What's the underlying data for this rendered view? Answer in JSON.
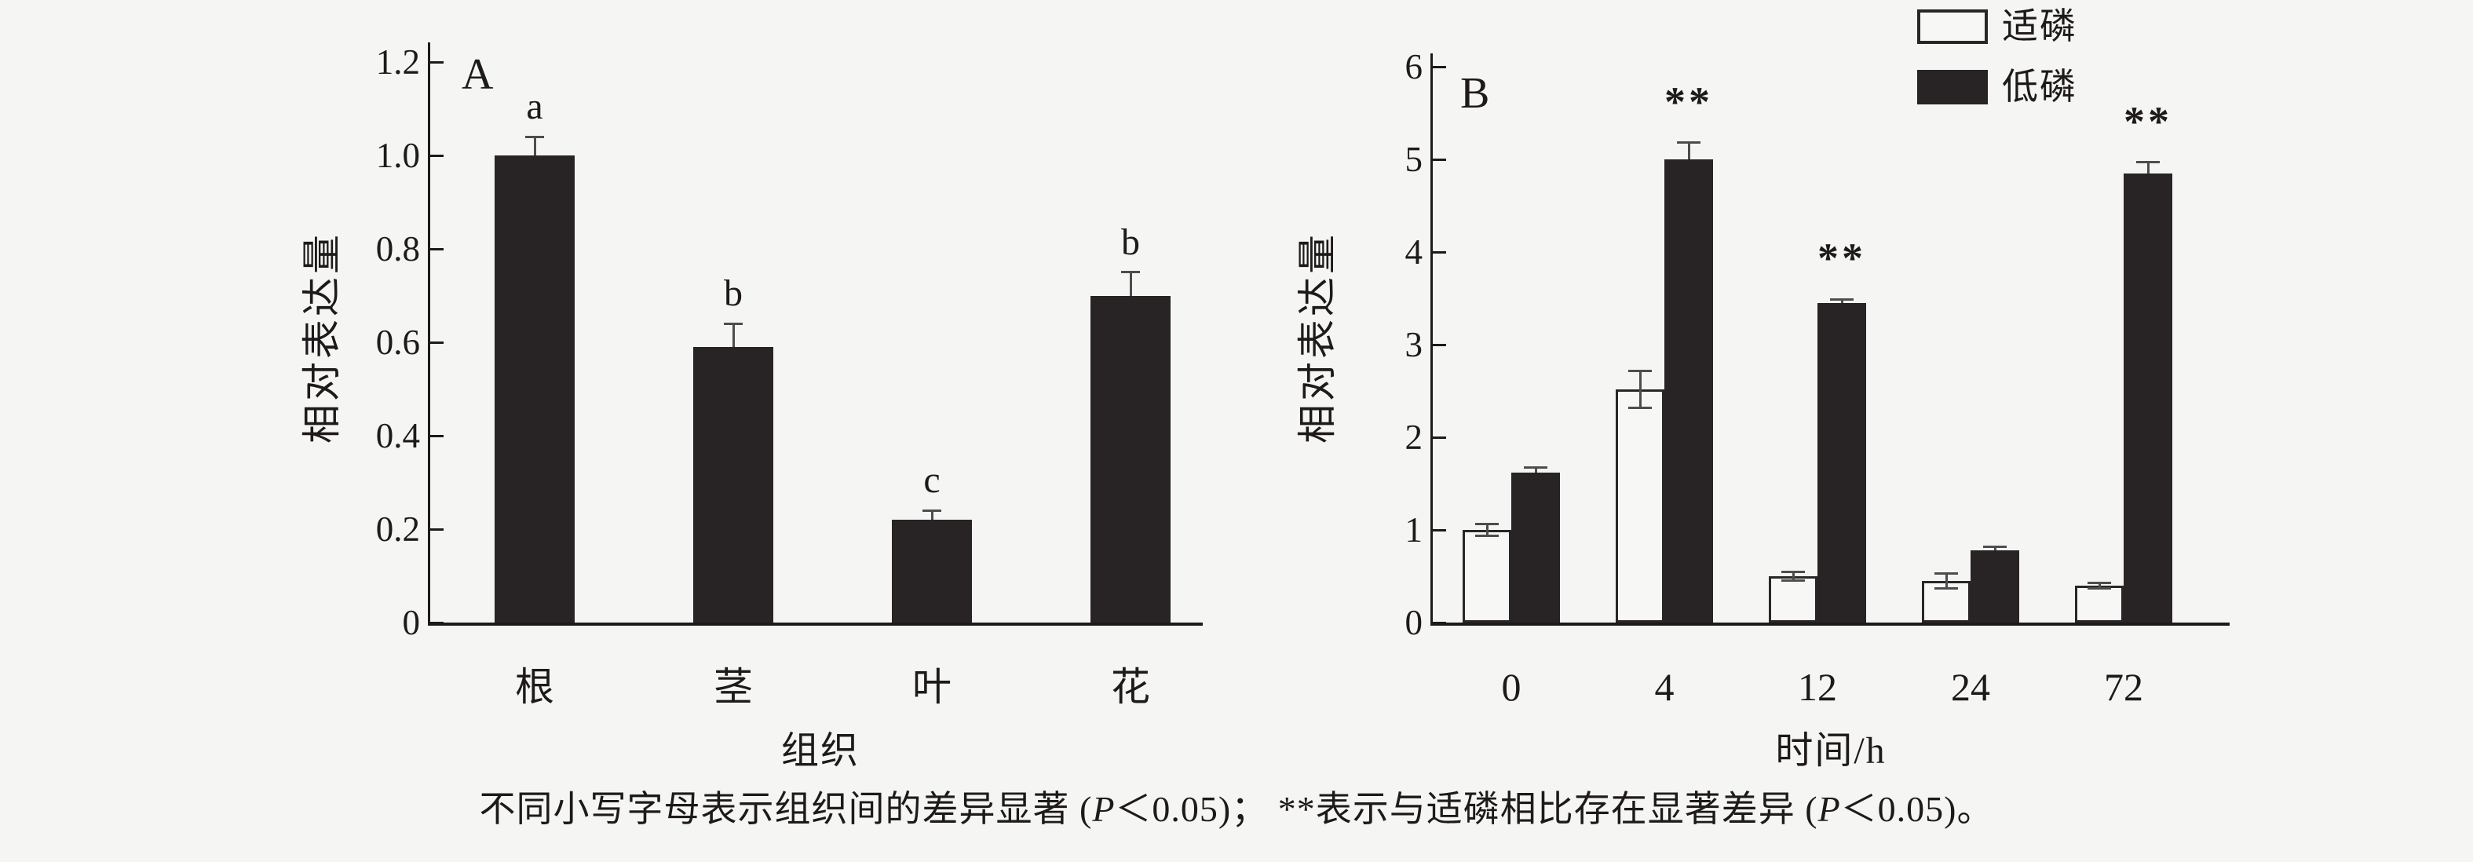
{
  "chart_data": [
    {
      "type": "bar",
      "panel": "A",
      "categories": [
        "根",
        "茎",
        "叶",
        "花"
      ],
      "values": [
        1.0,
        0.59,
        0.22,
        0.7
      ],
      "errors": [
        0.04,
        0.05,
        0.02,
        0.05
      ],
      "sig_letters": [
        "a",
        "b",
        "c",
        "b"
      ],
      "xlabel": "组织",
      "ylabel": "相对表达量",
      "ylim": [
        0,
        1.2
      ],
      "yticks": [
        "0",
        "0.2",
        "0.4",
        "0.6",
        "0.8",
        "1.0",
        "1.2"
      ],
      "grid": false,
      "legend_position": "none"
    },
    {
      "type": "bar",
      "panel": "B",
      "categories": [
        "0",
        "4",
        "12",
        "24",
        "72"
      ],
      "series": [
        {
          "name": "适磷",
          "style": "open",
          "values": [
            1.0,
            2.52,
            0.5,
            0.45,
            0.4
          ],
          "errors": [
            0.06,
            0.2,
            0.05,
            0.08,
            0.03
          ]
        },
        {
          "name": "低磷",
          "style": "filled",
          "values": [
            1.62,
            5.0,
            3.45,
            0.78,
            4.85
          ],
          "errors": [
            0.05,
            0.18,
            0.04,
            0.04,
            0.12
          ]
        }
      ],
      "sig_markers": [
        "",
        "**",
        "**",
        "",
        "**"
      ],
      "xlabel": "时间/h",
      "ylabel": "相对表达量",
      "ylim": [
        0,
        6
      ],
      "yticks": [
        "0",
        "1",
        "2",
        "3",
        "4",
        "5",
        "6"
      ],
      "grid": false,
      "legend_position": "top-right"
    }
  ],
  "legend": {
    "items": [
      {
        "label": "适磷",
        "swatch": "open"
      },
      {
        "label": "低磷",
        "swatch": "filled"
      }
    ]
  },
  "caption": {
    "part1": "不同小写字母表示组织间的差异显著 (",
    "p1": "P",
    "part2": "＜0.05)；  **表示与适磷相比存在显著差异 (",
    "p2": "P",
    "part3": "＜0.05)。"
  },
  "colors": {
    "background": "#f5f5f3",
    "ink": "#1e1a1b",
    "bar_filled": "#282425",
    "bar_open_fill": "#f7f7f5",
    "error_bar": "#4d4d4d"
  }
}
